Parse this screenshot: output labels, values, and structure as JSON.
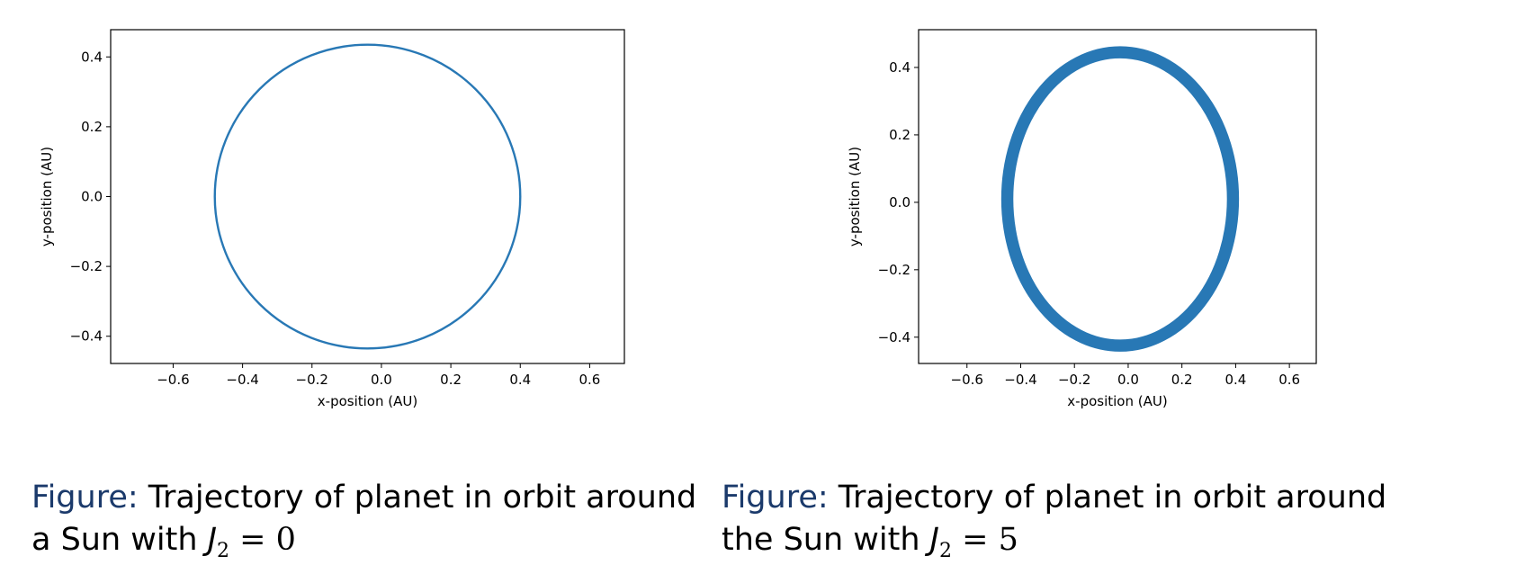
{
  "chart_data": [
    {
      "type": "line",
      "title": "",
      "xlabel": "x-position (AU)",
      "ylabel": "y-position (AU)",
      "xlim": [
        -0.78,
        0.7
      ],
      "ylim": [
        -0.478,
        0.478
      ],
      "xticks": [
        -0.6,
        -0.4,
        -0.2,
        0.0,
        0.2,
        0.4,
        0.6
      ],
      "yticks": [
        -0.4,
        -0.2,
        0.0,
        0.2,
        0.4
      ],
      "xtick_labels": [
        "−0.6",
        "−0.4",
        "−0.2",
        "0.0",
        "0.2",
        "0.4",
        "0.6"
      ],
      "ytick_labels": [
        "−0.4",
        "−0.2",
        "0.0",
        "0.2",
        "0.4"
      ],
      "grid": false,
      "series_color": "#2878b5",
      "orbit": {
        "center_x": -0.04,
        "center_y": 0.0,
        "radius_x": 0.44,
        "radius_y": 0.435,
        "band_width": 0.004
      },
      "points": [
        {
          "x": 0.4,
          "y": 0.0
        },
        {
          "x": 0.33,
          "y": 0.24
        },
        {
          "x": -0.04,
          "y": 0.435
        },
        {
          "x": -0.33,
          "y": 0.31
        },
        {
          "x": -0.48,
          "y": 0.0
        },
        {
          "x": -0.33,
          "y": -0.31
        },
        {
          "x": -0.04,
          "y": -0.435
        },
        {
          "x": 0.29,
          "y": -0.28
        },
        {
          "x": 0.4,
          "y": 0.0
        }
      ]
    },
    {
      "type": "line",
      "title": "",
      "xlabel": "x-position (AU)",
      "ylabel": "y-position (AU)",
      "xlim": [
        -0.78,
        0.7
      ],
      "ylim": [
        -0.478,
        0.512
      ],
      "xticks": [
        -0.6,
        -0.4,
        -0.2,
        0.0,
        0.2,
        0.4,
        0.6
      ],
      "yticks": [
        -0.4,
        -0.2,
        0.0,
        0.2,
        0.4
      ],
      "xtick_labels": [
        "−0.6",
        "−0.4",
        "−0.2",
        "0.0",
        "0.2",
        "0.4",
        "0.6"
      ],
      "ytick_labels": [
        "−0.4",
        "−0.2",
        "0.0",
        "0.2",
        "0.4"
      ],
      "grid": false,
      "series_color": "#2878b5",
      "orbit": {
        "center_x": -0.03,
        "center_y": 0.01,
        "radius_x": 0.42,
        "radius_y": 0.435,
        "band_width": 0.045
      },
      "points": [
        {
          "x": 0.41,
          "y": 0.02
        },
        {
          "x": 0.33,
          "y": 0.28
        },
        {
          "x": -0.03,
          "y": 0.46
        },
        {
          "x": -0.34,
          "y": 0.3
        },
        {
          "x": -0.47,
          "y": 0.0
        },
        {
          "x": -0.34,
          "y": -0.3
        },
        {
          "x": -0.03,
          "y": -0.44
        },
        {
          "x": 0.3,
          "y": -0.28
        },
        {
          "x": 0.41,
          "y": 0.02
        }
      ]
    }
  ],
  "captions": [
    {
      "label": "Figure:",
      "text": "Trajectory of planet in orbit around",
      "text2": "a Sun with",
      "J": "J",
      "sub": "2",
      "eq": "= 0"
    },
    {
      "label": "Figure:",
      "text": "Trajectory of planet in orbit around",
      "text2": "the Sun with",
      "J": "J",
      "sub": "2",
      "eq": "= 5"
    }
  ]
}
